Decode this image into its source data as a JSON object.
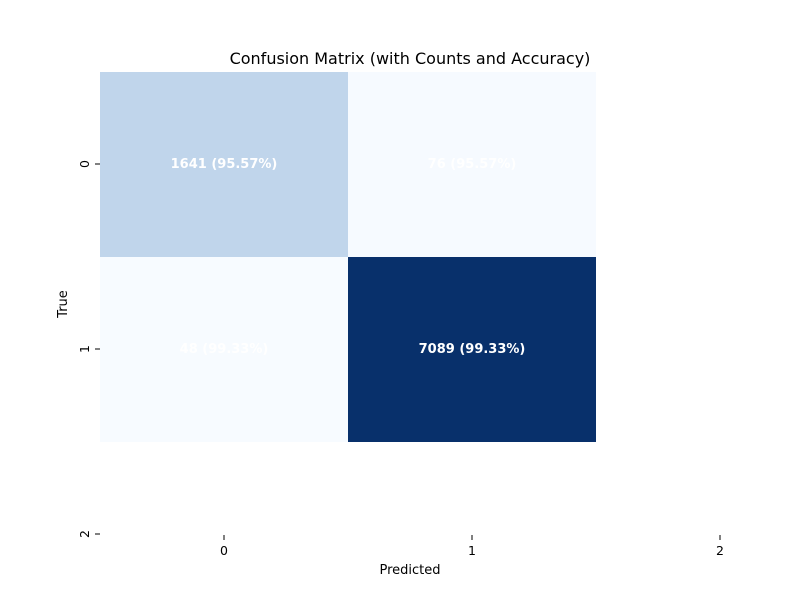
{
  "chart_data": {
    "type": "heatmap",
    "title": "Confusion Matrix (with Counts and Accuracy)",
    "xlabel": "Predicted",
    "ylabel": "True",
    "x_ticks": [
      "0",
      "1",
      "2"
    ],
    "y_ticks": [
      "0",
      "1",
      "2"
    ],
    "rows": [
      "0",
      "1"
    ],
    "columns": [
      "0",
      "1"
    ],
    "values": [
      [
        1641,
        76
      ],
      [
        48,
        7089
      ]
    ],
    "cell_labels": [
      [
        "1641 (95.57%)",
        "76 (95.57%)"
      ],
      [
        "48 (99.33%)",
        "7089 (99.33%)"
      ]
    ],
    "colormap": "Blues",
    "color_min": "#f7fbff",
    "color_max": "#08306b",
    "colorbar": false,
    "grid": false
  }
}
